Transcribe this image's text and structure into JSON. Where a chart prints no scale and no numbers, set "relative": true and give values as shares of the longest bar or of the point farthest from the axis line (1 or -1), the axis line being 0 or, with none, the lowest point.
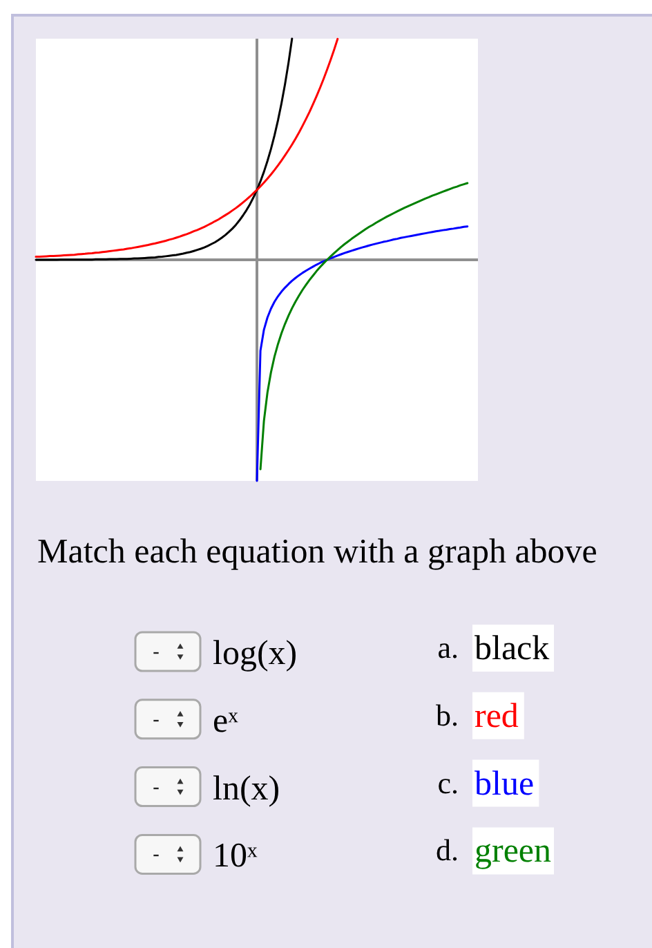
{
  "chart_data": {
    "type": "line",
    "relative": true,
    "categories": [
      null,
      null,
      null,
      null,
      null,
      null,
      null,
      null,
      null,
      null,
      null,
      null,
      null,
      null,
      null,
      null,
      null,
      null,
      null,
      null,
      null,
      null,
      null,
      null,
      null,
      null,
      null,
      null,
      null,
      null,
      null,
      null,
      null,
      null,
      null,
      null,
      null,
      null,
      null,
      null,
      null,
      null,
      null,
      null,
      null,
      null,
      null,
      null,
      null,
      null,
      null,
      null,
      null,
      null,
      null,
      null,
      null,
      null,
      null,
      null,
      null,
      null,
      null,
      null,
      null,
      null,
      null,
      null,
      null,
      null,
      null,
      null,
      null,
      null,
      null,
      null,
      null,
      null,
      null,
      null,
      null,
      null,
      null,
      null,
      null,
      null,
      null,
      null,
      null,
      null,
      null,
      null,
      null,
      null,
      null,
      null,
      null,
      null,
      null,
      null,
      null,
      null,
      null,
      null,
      null,
      null,
      null,
      null,
      null,
      null,
      null,
      null,
      null,
      null,
      null,
      null,
      null,
      null,
      null,
      null,
      null,
      null,
      null,
      null,
      null,
      null,
      null
    ],
    "series": [
      {
        "name": "black",
        "color": "#000000",
        "values": [
          0,
          0,
          0,
          0,
          0,
          0,
          0,
          0.001,
          0.001,
          0.001,
          0.001,
          0.001,
          0.001,
          0.001,
          0.001,
          0.001,
          0.001,
          0.002,
          0.002,
          0.002,
          0.002,
          0.003,
          0.003,
          0.003,
          0.004,
          0.004,
          0.004,
          0.005,
          0.006,
          0.006,
          0.007,
          0.008,
          0.009,
          0.01,
          0.011,
          0.013,
          0.014,
          0.016,
          0.018,
          0.02,
          0.022,
          0.025,
          0.028,
          0.032,
          0.035,
          0.04,
          0.045,
          0.05,
          0.056,
          0.063,
          0.071,
          0.079,
          0.089,
          0.1,
          0.112,
          0.126,
          0.141,
          0.158,
          0.178,
          0.2,
          0.224,
          0.251,
          0.282,
          0.316,
          0.355,
          0.398,
          0.447,
          0.501,
          0.562,
          0.631,
          0.708,
          0.794,
          0.891,
          1,
          null,
          null,
          null,
          null,
          null,
          null,
          null,
          null,
          null,
          null,
          null,
          null,
          null,
          null,
          null,
          null,
          null,
          null,
          null,
          null,
          null,
          null,
          null,
          null,
          null,
          null,
          null,
          null,
          null,
          null,
          null,
          null,
          null,
          null,
          null,
          null,
          null,
          null,
          null,
          null,
          null,
          null,
          null,
          null,
          null,
          null,
          null,
          null,
          null,
          null,
          null,
          null,
          null
        ]
      },
      {
        "name": "red",
        "color": "#ff0000",
        "values": [
          0.014,
          0.014,
          0.015,
          0.016,
          0.017,
          0.017,
          0.018,
          0.019,
          0.02,
          0.021,
          0.022,
          0.023,
          0.025,
          0.026,
          0.027,
          0.029,
          0.03,
          0.032,
          0.033,
          0.035,
          0.037,
          0.039,
          0.041,
          0.043,
          0.045,
          0.047,
          0.05,
          0.052,
          0.055,
          0.058,
          0.061,
          0.064,
          0.067,
          0.071,
          0.074,
          0.078,
          0.082,
          0.086,
          0.091,
          0.095,
          0.1,
          0.105,
          0.111,
          0.116,
          0.122,
          0.129,
          0.135,
          0.142,
          0.149,
          0.157,
          0.165,
          0.174,
          0.182,
          0.192,
          0.202,
          0.212,
          0.223,
          0.234,
          0.246,
          0.259,
          0.272,
          0.286,
          0.301,
          0.316,
          0.332,
          0.349,
          0.367,
          0.386,
          0.406,
          0.427,
          0.449,
          0.472,
          0.496,
          0.521,
          0.548,
          0.576,
          0.606,
          0.637,
          0.669,
          0.704,
          0.74,
          0.778,
          0.818,
          0.86,
          0.904,
          0.95,
          0.999,
          null,
          null,
          null,
          null,
          null,
          null,
          null,
          null,
          null,
          null,
          null,
          null,
          null,
          null,
          null,
          null,
          null,
          null,
          null,
          null,
          null,
          null,
          null,
          null,
          null,
          null,
          null,
          null,
          null,
          null,
          null,
          null,
          null,
          null,
          null,
          null,
          null,
          null,
          null,
          null
        ]
      },
      {
        "name": "blue",
        "color": "#0000ff",
        "values": [
          null,
          null,
          null,
          null,
          null,
          null,
          null,
          null,
          null,
          null,
          null,
          null,
          null,
          null,
          null,
          null,
          null,
          null,
          null,
          null,
          null,
          null,
          null,
          null,
          null,
          null,
          null,
          null,
          null,
          null,
          null,
          null,
          null,
          null,
          null,
          null,
          null,
          null,
          null,
          null,
          null,
          null,
          null,
          null,
          null,
          null,
          null,
          null,
          null,
          null,
          null,
          null,
          null,
          null,
          null,
          null,
          null,
          null,
          null,
          null,
          null,
          null,
          null,
          -1,
          -0.411,
          -0.316,
          -0.261,
          -0.221,
          -0.19,
          -0.165,
          -0.144,
          -0.126,
          -0.11,
          -0.095,
          -0.082,
          -0.07,
          -0.059,
          -0.049,
          -0.04,
          -0.031,
          -0.022,
          -0.014,
          -0.007,
          0,
          0.007,
          0.013,
          0.019,
          0.025,
          0.031,
          0.036,
          0.041,
          0.046,
          0.051,
          0.056,
          0.06,
          0.065,
          0.069,
          0.073,
          0.077,
          0.081,
          0.084,
          0.088,
          0.092,
          0.095,
          0.099,
          0.102,
          0.105,
          0.108,
          0.111,
          0.114,
          0.117,
          0.12,
          0.123,
          0.126,
          0.129,
          0.131,
          0.134,
          0.136,
          0.139,
          0.141,
          0.144,
          0.146,
          0.149,
          0.151,
          null,
          null,
          null
        ]
      },
      {
        "name": "green",
        "color": "#008000",
        "values": [
          null,
          null,
          null,
          null,
          null,
          null,
          null,
          null,
          null,
          null,
          null,
          null,
          null,
          null,
          null,
          null,
          null,
          null,
          null,
          null,
          null,
          null,
          null,
          null,
          null,
          null,
          null,
          null,
          null,
          null,
          null,
          null,
          null,
          null,
          null,
          null,
          null,
          null,
          null,
          null,
          null,
          null,
          null,
          null,
          null,
          null,
          null,
          null,
          null,
          null,
          null,
          null,
          null,
          null,
          null,
          null,
          null,
          null,
          null,
          null,
          null,
          null,
          null,
          null,
          -0.947,
          -0.728,
          -0.6,
          -0.509,
          -0.438,
          -0.381,
          -0.332,
          -0.29,
          -0.253,
          -0.219,
          -0.189,
          -0.162,
          -0.136,
          -0.113,
          -0.091,
          -0.071,
          -0.051,
          -0.033,
          -0.016,
          0,
          0.015,
          0.03,
          0.044,
          0.058,
          0.071,
          0.083,
          0.095,
          0.106,
          0.117,
          0.128,
          0.139,
          0.149,
          0.158,
          0.168,
          0.177,
          0.186,
          0.195,
          0.203,
          0.211,
          0.219,
          0.227,
          0.235,
          0.242,
          0.249,
          0.256,
          0.263,
          0.27,
          0.277,
          0.283,
          0.29,
          0.296,
          0.302,
          0.308,
          0.314,
          0.32,
          0.326,
          0.331,
          0.337,
          0.342,
          0.347,
          null,
          null,
          null
        ]
      }
    ],
    "annotations": [
      "Match each equation with a graph above",
      "-",
      "log(x)",
      "a.",
      "-",
      "eˣ",
      "b.",
      "-",
      "ln(x)",
      "c.",
      "-",
      "10ˣ",
      "d."
    ]
  }
}
